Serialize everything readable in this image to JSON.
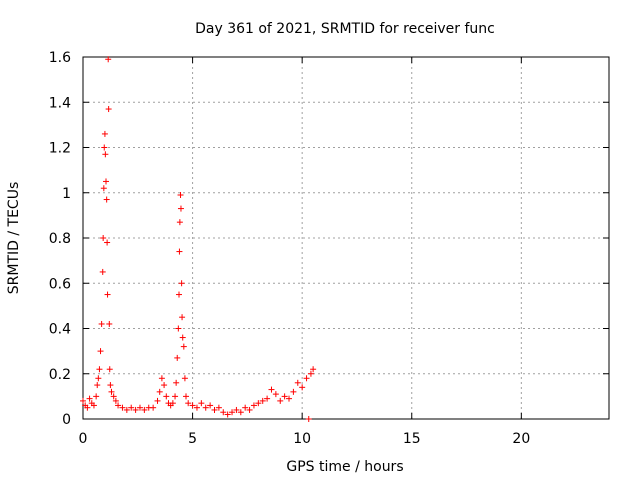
{
  "chart_data": {
    "type": "scatter",
    "title": "Day 361 of 2021, SRMTID for receiver func",
    "xlabel": "GPS time / hours",
    "ylabel": "SRMTID / TECUs",
    "xlim": [
      0,
      24
    ],
    "ylim": [
      0,
      1.6
    ],
    "xticks": [
      0,
      5,
      10,
      15,
      20
    ],
    "yticks": [
      0,
      0.2,
      0.4,
      0.6,
      0.8,
      1,
      1.2,
      1.4,
      1.6
    ],
    "xtick_labels": [
      "0",
      "5",
      "10",
      "15",
      "20"
    ],
    "ytick_labels": [
      "0",
      "0.2",
      "0.4",
      "0.6",
      "0.8",
      "1",
      "1.2",
      "1.4",
      "1.6"
    ],
    "grid": true,
    "marker": "+",
    "color": "#ff0000",
    "series": [
      {
        "name": "SRMTID",
        "points": [
          [
            0.0,
            0.08
          ],
          [
            0.1,
            0.06
          ],
          [
            0.2,
            0.05
          ],
          [
            0.3,
            0.09
          ],
          [
            0.4,
            0.07
          ],
          [
            0.5,
            0.06
          ],
          [
            0.6,
            0.1
          ],
          [
            0.65,
            0.15
          ],
          [
            0.7,
            0.18
          ],
          [
            0.75,
            0.22
          ],
          [
            0.8,
            0.3
          ],
          [
            0.85,
            0.42
          ],
          [
            0.9,
            0.65
          ],
          [
            0.92,
            0.8
          ],
          [
            0.95,
            1.02
          ],
          [
            0.97,
            1.2
          ],
          [
            1.0,
            1.26
          ],
          [
            1.02,
            1.17
          ],
          [
            1.05,
            1.05
          ],
          [
            1.08,
            0.97
          ],
          [
            1.1,
            0.78
          ],
          [
            1.12,
            0.55
          ],
          [
            1.15,
            1.59
          ],
          [
            1.17,
            1.37
          ],
          [
            1.2,
            0.42
          ],
          [
            1.22,
            0.22
          ],
          [
            1.25,
            0.15
          ],
          [
            1.3,
            0.12
          ],
          [
            1.4,
            0.1
          ],
          [
            1.5,
            0.08
          ],
          [
            1.6,
            0.06
          ],
          [
            1.8,
            0.05
          ],
          [
            2.0,
            0.04
          ],
          [
            2.2,
            0.05
          ],
          [
            2.4,
            0.04
          ],
          [
            2.6,
            0.05
          ],
          [
            2.8,
            0.04
          ],
          [
            3.0,
            0.05
          ],
          [
            3.2,
            0.05
          ],
          [
            3.4,
            0.08
          ],
          [
            3.5,
            0.12
          ],
          [
            3.6,
            0.18
          ],
          [
            3.7,
            0.15
          ],
          [
            3.8,
            0.1
          ],
          [
            3.9,
            0.07
          ],
          [
            4.0,
            0.06
          ],
          [
            4.1,
            0.07
          ],
          [
            4.2,
            0.1
          ],
          [
            4.25,
            0.16
          ],
          [
            4.3,
            0.27
          ],
          [
            4.35,
            0.4
          ],
          [
            4.38,
            0.55
          ],
          [
            4.4,
            0.74
          ],
          [
            4.42,
            0.87
          ],
          [
            4.45,
            0.99
          ],
          [
            4.47,
            0.93
          ],
          [
            4.5,
            0.6
          ],
          [
            4.52,
            0.45
          ],
          [
            4.55,
            0.36
          ],
          [
            4.6,
            0.32
          ],
          [
            4.65,
            0.18
          ],
          [
            4.7,
            0.1
          ],
          [
            4.8,
            0.07
          ],
          [
            5.0,
            0.06
          ],
          [
            5.2,
            0.05
          ],
          [
            5.4,
            0.07
          ],
          [
            5.6,
            0.05
          ],
          [
            5.8,
            0.06
          ],
          [
            6.0,
            0.04
          ],
          [
            6.2,
            0.05
          ],
          [
            6.4,
            0.03
          ],
          [
            6.6,
            0.02
          ],
          [
            6.8,
            0.03
          ],
          [
            7.0,
            0.04
          ],
          [
            7.2,
            0.03
          ],
          [
            7.4,
            0.05
          ],
          [
            7.6,
            0.04
          ],
          [
            7.8,
            0.06
          ],
          [
            8.0,
            0.07
          ],
          [
            8.2,
            0.08
          ],
          [
            8.4,
            0.09
          ],
          [
            8.6,
            0.13
          ],
          [
            8.8,
            0.11
          ],
          [
            9.0,
            0.08
          ],
          [
            9.2,
            0.1
          ],
          [
            9.4,
            0.09
          ],
          [
            9.6,
            0.12
          ],
          [
            9.8,
            0.16
          ],
          [
            10.0,
            0.14
          ],
          [
            10.2,
            0.18
          ],
          [
            10.4,
            0.2
          ],
          [
            10.5,
            0.22
          ],
          [
            10.3,
            0.0
          ]
        ]
      }
    ]
  }
}
